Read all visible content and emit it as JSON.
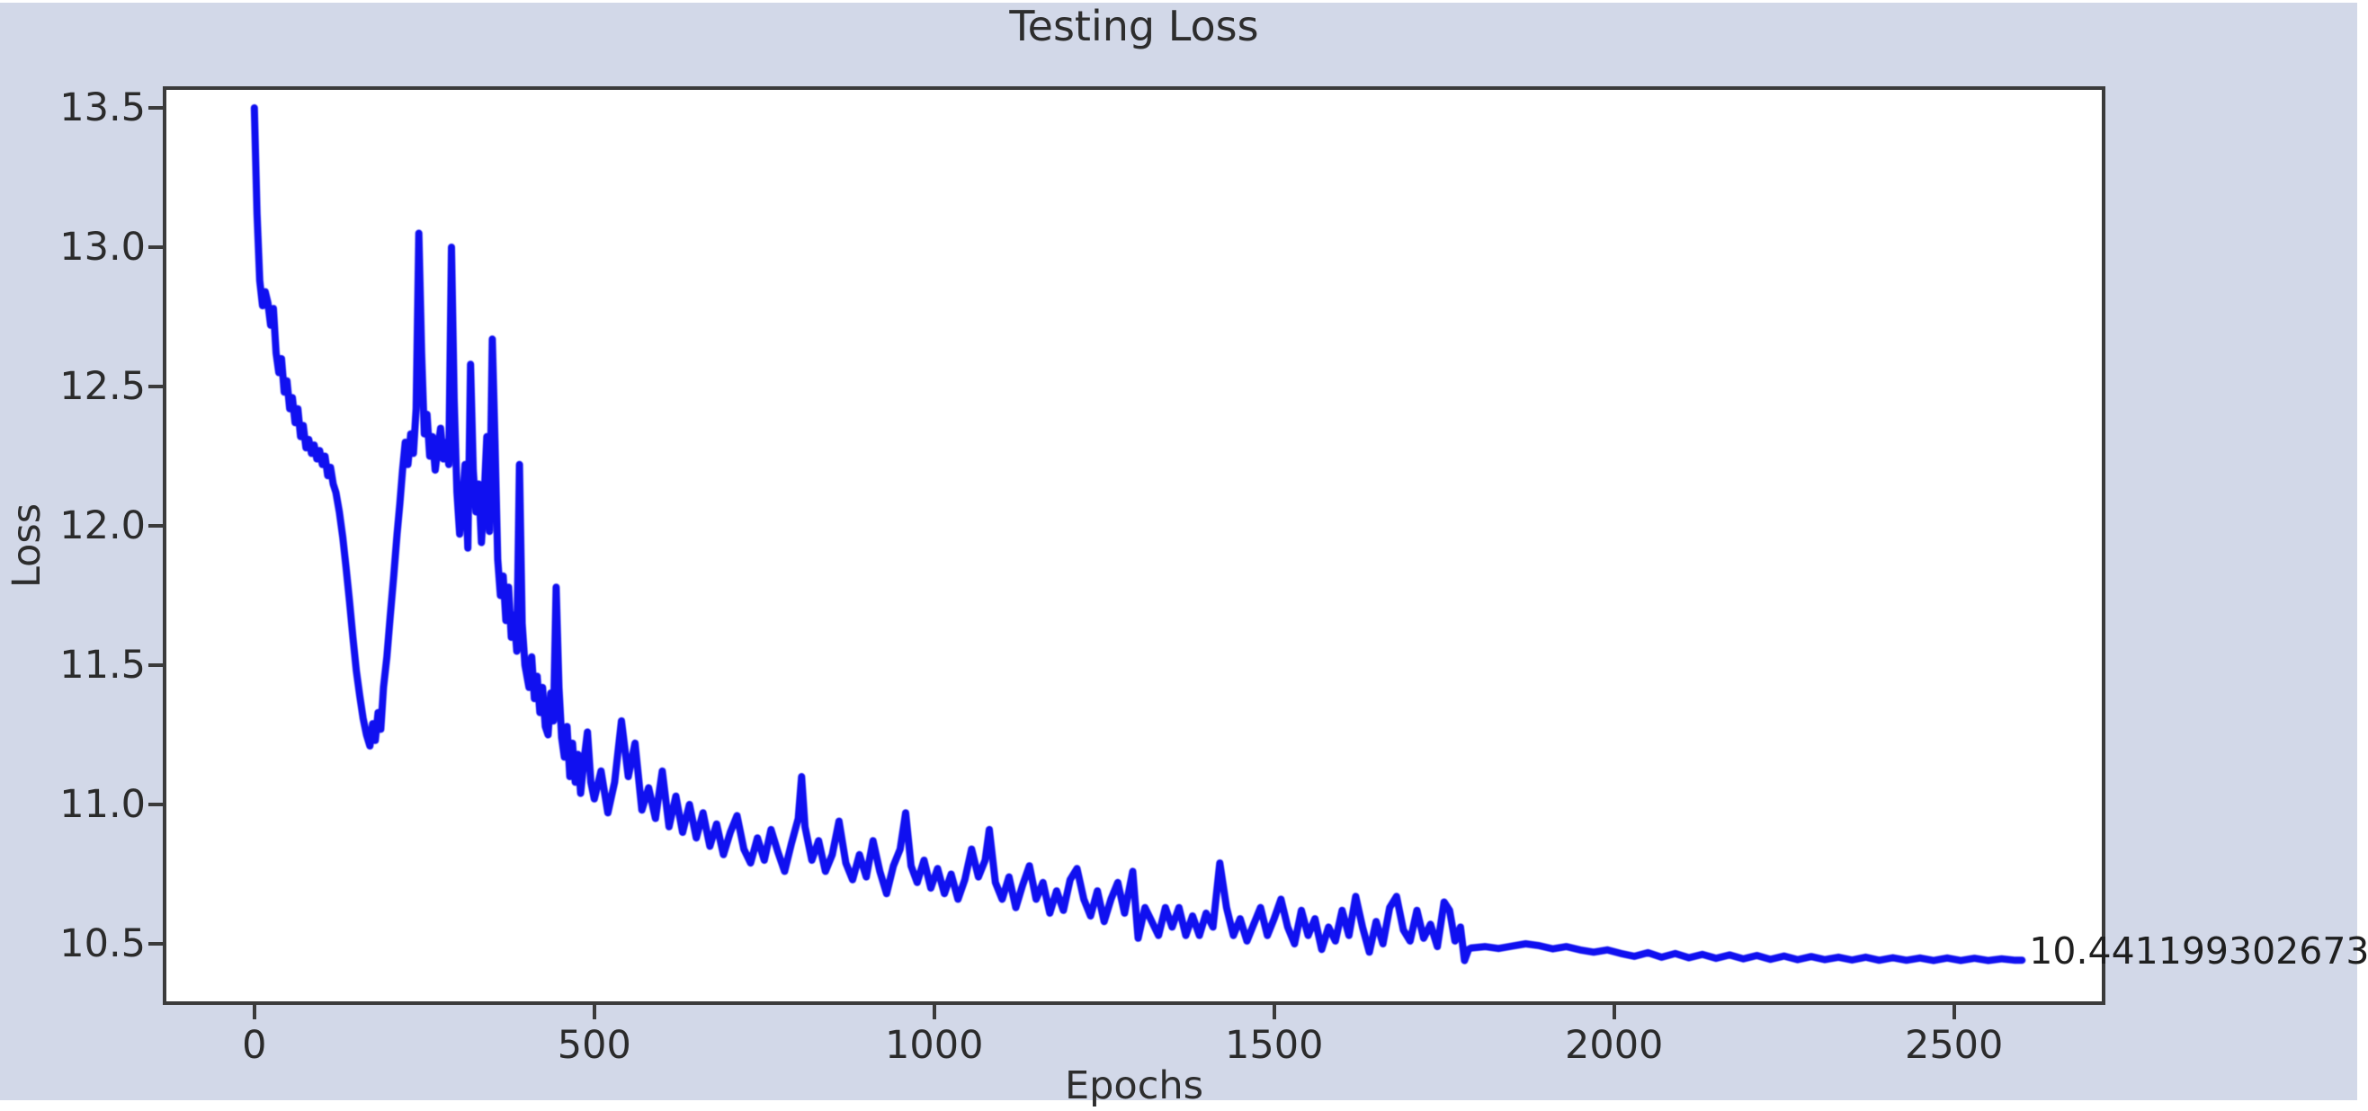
{
  "figure": {
    "title": "Testing Loss",
    "xlabel": "Epochs",
    "ylabel": "Loss",
    "annotation_text": "10.4411993026733",
    "colors": {
      "figure_bg": "#d2d8e8",
      "plot_bg": "#ffffff",
      "line": "#1010f0",
      "axis": "#3b3b3b",
      "text": "#2d2d2d"
    }
  },
  "chart_data": {
    "type": "line",
    "title": "Testing Loss",
    "xlabel": "Epochs",
    "ylabel": "Loss",
    "grid": false,
    "legend_position": "none",
    "xlim": [
      -132,
      2720
    ],
    "ylim": [
      10.287,
      13.571
    ],
    "xticks": [
      {
        "v": 0,
        "label": "0"
      },
      {
        "v": 500,
        "label": "500"
      },
      {
        "v": 1000,
        "label": "1000"
      },
      {
        "v": 1500,
        "label": "1500"
      },
      {
        "v": 2000,
        "label": "2000"
      },
      {
        "v": 2500,
        "label": "2500"
      }
    ],
    "yticks": [
      {
        "v": 13.5,
        "label": "13.5"
      },
      {
        "v": 13.0,
        "label": "13.0"
      },
      {
        "v": 12.5,
        "label": "12.5"
      },
      {
        "v": 12.0,
        "label": "12.0"
      },
      {
        "v": 11.5,
        "label": "11.5"
      },
      {
        "v": 11.0,
        "label": "11.0"
      },
      {
        "v": 10.5,
        "label": "10.5"
      }
    ],
    "annotation": {
      "text": "10.4411993026733",
      "x": 2600,
      "y": 10.4412,
      "final_value": 10.4411993026733
    },
    "series": [
      {
        "name": "testing-loss",
        "color": "#1010f0",
        "points": [
          [
            0,
            13.5
          ],
          [
            4,
            13.12
          ],
          [
            8,
            12.88
          ],
          [
            12,
            12.79
          ],
          [
            16,
            12.84
          ],
          [
            20,
            12.8
          ],
          [
            24,
            12.72
          ],
          [
            28,
            12.78
          ],
          [
            32,
            12.62
          ],
          [
            36,
            12.55
          ],
          [
            40,
            12.6
          ],
          [
            44,
            12.48
          ],
          [
            48,
            12.52
          ],
          [
            52,
            12.42
          ],
          [
            56,
            12.46
          ],
          [
            60,
            12.37
          ],
          [
            64,
            12.42
          ],
          [
            68,
            12.32
          ],
          [
            72,
            12.36
          ],
          [
            76,
            12.28
          ],
          [
            80,
            12.31
          ],
          [
            84,
            12.26
          ],
          [
            88,
            12.29
          ],
          [
            92,
            12.24
          ],
          [
            96,
            12.27
          ],
          [
            100,
            12.22
          ],
          [
            104,
            12.25
          ],
          [
            108,
            12.18
          ],
          [
            112,
            12.21
          ],
          [
            116,
            12.15
          ],
          [
            120,
            12.12
          ],
          [
            125,
            12.05
          ],
          [
            130,
            11.96
          ],
          [
            135,
            11.85
          ],
          [
            140,
            11.73
          ],
          [
            145,
            11.6
          ],
          [
            150,
            11.48
          ],
          [
            155,
            11.39
          ],
          [
            160,
            11.31
          ],
          [
            165,
            11.25
          ],
          [
            170,
            11.21
          ],
          [
            174,
            11.29
          ],
          [
            178,
            11.23
          ],
          [
            182,
            11.33
          ],
          [
            186,
            11.27
          ],
          [
            190,
            11.42
          ],
          [
            195,
            11.53
          ],
          [
            200,
            11.68
          ],
          [
            205,
            11.82
          ],
          [
            210,
            11.97
          ],
          [
            214,
            12.08
          ],
          [
            218,
            12.2
          ],
          [
            222,
            12.3
          ],
          [
            226,
            12.22
          ],
          [
            230,
            12.33
          ],
          [
            234,
            12.26
          ],
          [
            238,
            12.42
          ],
          [
            242,
            13.05
          ],
          [
            246,
            12.62
          ],
          [
            250,
            12.33
          ],
          [
            254,
            12.4
          ],
          [
            258,
            12.25
          ],
          [
            262,
            12.32
          ],
          [
            266,
            12.2
          ],
          [
            270,
            12.28
          ],
          [
            274,
            12.35
          ],
          [
            278,
            12.24
          ],
          [
            282,
            12.3
          ],
          [
            286,
            12.22
          ],
          [
            290,
            13.0
          ],
          [
            294,
            12.45
          ],
          [
            298,
            12.12
          ],
          [
            302,
            11.97
          ],
          [
            306,
            12.08
          ],
          [
            310,
            12.22
          ],
          [
            314,
            11.92
          ],
          [
            318,
            12.58
          ],
          [
            322,
            12.2
          ],
          [
            326,
            12.05
          ],
          [
            330,
            12.15
          ],
          [
            334,
            11.94
          ],
          [
            338,
            12.1
          ],
          [
            342,
            12.32
          ],
          [
            346,
            11.98
          ],
          [
            350,
            12.67
          ],
          [
            354,
            12.3
          ],
          [
            358,
            11.88
          ],
          [
            362,
            11.75
          ],
          [
            366,
            11.82
          ],
          [
            370,
            11.66
          ],
          [
            374,
            11.78
          ],
          [
            378,
            11.6
          ],
          [
            382,
            11.68
          ],
          [
            386,
            11.55
          ],
          [
            390,
            12.22
          ],
          [
            394,
            11.65
          ],
          [
            398,
            11.5
          ],
          [
            404,
            11.42
          ],
          [
            408,
            11.53
          ],
          [
            412,
            11.38
          ],
          [
            416,
            11.46
          ],
          [
            420,
            11.33
          ],
          [
            424,
            11.42
          ],
          [
            428,
            11.28
          ],
          [
            432,
            11.25
          ],
          [
            436,
            11.4
          ],
          [
            440,
            11.3
          ],
          [
            444,
            11.78
          ],
          [
            448,
            11.42
          ],
          [
            452,
            11.24
          ],
          [
            456,
            11.17
          ],
          [
            460,
            11.28
          ],
          [
            464,
            11.1
          ],
          [
            468,
            11.22
          ],
          [
            472,
            11.08
          ],
          [
            476,
            11.18
          ],
          [
            480,
            11.04
          ],
          [
            485,
            11.16
          ],
          [
            490,
            11.26
          ],
          [
            495,
            11.08
          ],
          [
            500,
            11.02
          ],
          [
            510,
            11.12
          ],
          [
            520,
            10.97
          ],
          [
            530,
            11.08
          ],
          [
            540,
            11.3
          ],
          [
            550,
            11.1
          ],
          [
            560,
            11.22
          ],
          [
            570,
            10.98
          ],
          [
            580,
            11.06
          ],
          [
            590,
            10.95
          ],
          [
            600,
            11.12
          ],
          [
            610,
            10.92
          ],
          [
            620,
            11.03
          ],
          [
            630,
            10.9
          ],
          [
            640,
            11.0
          ],
          [
            650,
            10.88
          ],
          [
            660,
            10.97
          ],
          [
            670,
            10.85
          ],
          [
            680,
            10.93
          ],
          [
            690,
            10.82
          ],
          [
            700,
            10.9
          ],
          [
            710,
            10.96
          ],
          [
            720,
            10.84
          ],
          [
            730,
            10.79
          ],
          [
            740,
            10.88
          ],
          [
            750,
            10.8
          ],
          [
            760,
            10.91
          ],
          [
            770,
            10.83
          ],
          [
            780,
            10.76
          ],
          [
            790,
            10.86
          ],
          [
            800,
            10.95
          ],
          [
            805,
            11.1
          ],
          [
            810,
            10.92
          ],
          [
            820,
            10.8
          ],
          [
            830,
            10.87
          ],
          [
            840,
            10.76
          ],
          [
            850,
            10.82
          ],
          [
            860,
            10.94
          ],
          [
            870,
            10.79
          ],
          [
            880,
            10.73
          ],
          [
            890,
            10.82
          ],
          [
            900,
            10.74
          ],
          [
            910,
            10.87
          ],
          [
            920,
            10.76
          ],
          [
            930,
            10.68
          ],
          [
            940,
            10.78
          ],
          [
            950,
            10.84
          ],
          [
            958,
            10.97
          ],
          [
            966,
            10.78
          ],
          [
            975,
            10.72
          ],
          [
            985,
            10.8
          ],
          [
            995,
            10.7
          ],
          [
            1005,
            10.77
          ],
          [
            1015,
            10.68
          ],
          [
            1025,
            10.75
          ],
          [
            1035,
            10.66
          ],
          [
            1045,
            10.73
          ],
          [
            1055,
            10.84
          ],
          [
            1065,
            10.74
          ],
          [
            1075,
            10.8
          ],
          [
            1081,
            10.91
          ],
          [
            1090,
            10.72
          ],
          [
            1100,
            10.66
          ],
          [
            1110,
            10.74
          ],
          [
            1120,
            10.63
          ],
          [
            1130,
            10.71
          ],
          [
            1140,
            10.78
          ],
          [
            1150,
            10.66
          ],
          [
            1160,
            10.72
          ],
          [
            1170,
            10.61
          ],
          [
            1180,
            10.69
          ],
          [
            1190,
            10.62
          ],
          [
            1200,
            10.73
          ],
          [
            1210,
            10.77
          ],
          [
            1220,
            10.66
          ],
          [
            1230,
            10.6
          ],
          [
            1240,
            10.69
          ],
          [
            1250,
            10.58
          ],
          [
            1260,
            10.66
          ],
          [
            1270,
            10.72
          ],
          [
            1280,
            10.61
          ],
          [
            1292,
            10.76
          ],
          [
            1300,
            10.52
          ],
          [
            1310,
            10.63
          ],
          [
            1320,
            10.58
          ],
          [
            1330,
            10.53
          ],
          [
            1340,
            10.63
          ],
          [
            1350,
            10.56
          ],
          [
            1360,
            10.63
          ],
          [
            1370,
            10.53
          ],
          [
            1380,
            10.6
          ],
          [
            1390,
            10.53
          ],
          [
            1400,
            10.61
          ],
          [
            1410,
            10.56
          ],
          [
            1420,
            10.79
          ],
          [
            1430,
            10.63
          ],
          [
            1440,
            10.53
          ],
          [
            1450,
            10.59
          ],
          [
            1460,
            10.51
          ],
          [
            1470,
            10.57
          ],
          [
            1480,
            10.63
          ],
          [
            1490,
            10.53
          ],
          [
            1500,
            10.59
          ],
          [
            1510,
            10.66
          ],
          [
            1520,
            10.56
          ],
          [
            1530,
            10.5
          ],
          [
            1540,
            10.62
          ],
          [
            1550,
            10.53
          ],
          [
            1560,
            10.59
          ],
          [
            1570,
            10.48
          ],
          [
            1580,
            10.56
          ],
          [
            1590,
            10.51
          ],
          [
            1600,
            10.62
          ],
          [
            1610,
            10.53
          ],
          [
            1620,
            10.67
          ],
          [
            1630,
            10.56
          ],
          [
            1640,
            10.47
          ],
          [
            1650,
            10.58
          ],
          [
            1660,
            10.5
          ],
          [
            1670,
            10.63
          ],
          [
            1680,
            10.67
          ],
          [
            1690,
            10.55
          ],
          [
            1700,
            10.51
          ],
          [
            1710,
            10.62
          ],
          [
            1720,
            10.52
          ],
          [
            1730,
            10.57
          ],
          [
            1740,
            10.49
          ],
          [
            1750,
            10.65
          ],
          [
            1758,
            10.62
          ],
          [
            1766,
            10.51
          ],
          [
            1774,
            10.56
          ],
          [
            1780,
            10.44
          ],
          [
            1786,
            10.48
          ],
          [
            1790,
            10.485
          ],
          [
            1810,
            10.49
          ],
          [
            1830,
            10.483
          ],
          [
            1850,
            10.492
          ],
          [
            1870,
            10.5
          ],
          [
            1890,
            10.493
          ],
          [
            1910,
            10.482
          ],
          [
            1930,
            10.49
          ],
          [
            1950,
            10.478
          ],
          [
            1970,
            10.47
          ],
          [
            1990,
            10.478
          ],
          [
            2010,
            10.465
          ],
          [
            2030,
            10.455
          ],
          [
            2050,
            10.468
          ],
          [
            2070,
            10.452
          ],
          [
            2090,
            10.465
          ],
          [
            2110,
            10.45
          ],
          [
            2130,
            10.462
          ],
          [
            2150,
            10.448
          ],
          [
            2170,
            10.46
          ],
          [
            2190,
            10.446
          ],
          [
            2210,
            10.458
          ],
          [
            2230,
            10.444
          ],
          [
            2250,
            10.456
          ],
          [
            2270,
            10.443
          ],
          [
            2290,
            10.454
          ],
          [
            2310,
            10.443
          ],
          [
            2330,
            10.452
          ],
          [
            2350,
            10.442
          ],
          [
            2370,
            10.452
          ],
          [
            2390,
            10.441
          ],
          [
            2410,
            10.45
          ],
          [
            2430,
            10.441
          ],
          [
            2450,
            10.449
          ],
          [
            2470,
            10.44
          ],
          [
            2490,
            10.449
          ],
          [
            2510,
            10.44
          ],
          [
            2530,
            10.448
          ],
          [
            2550,
            10.44
          ],
          [
            2570,
            10.446
          ],
          [
            2590,
            10.441
          ],
          [
            2600,
            10.4412
          ]
        ]
      }
    ]
  }
}
